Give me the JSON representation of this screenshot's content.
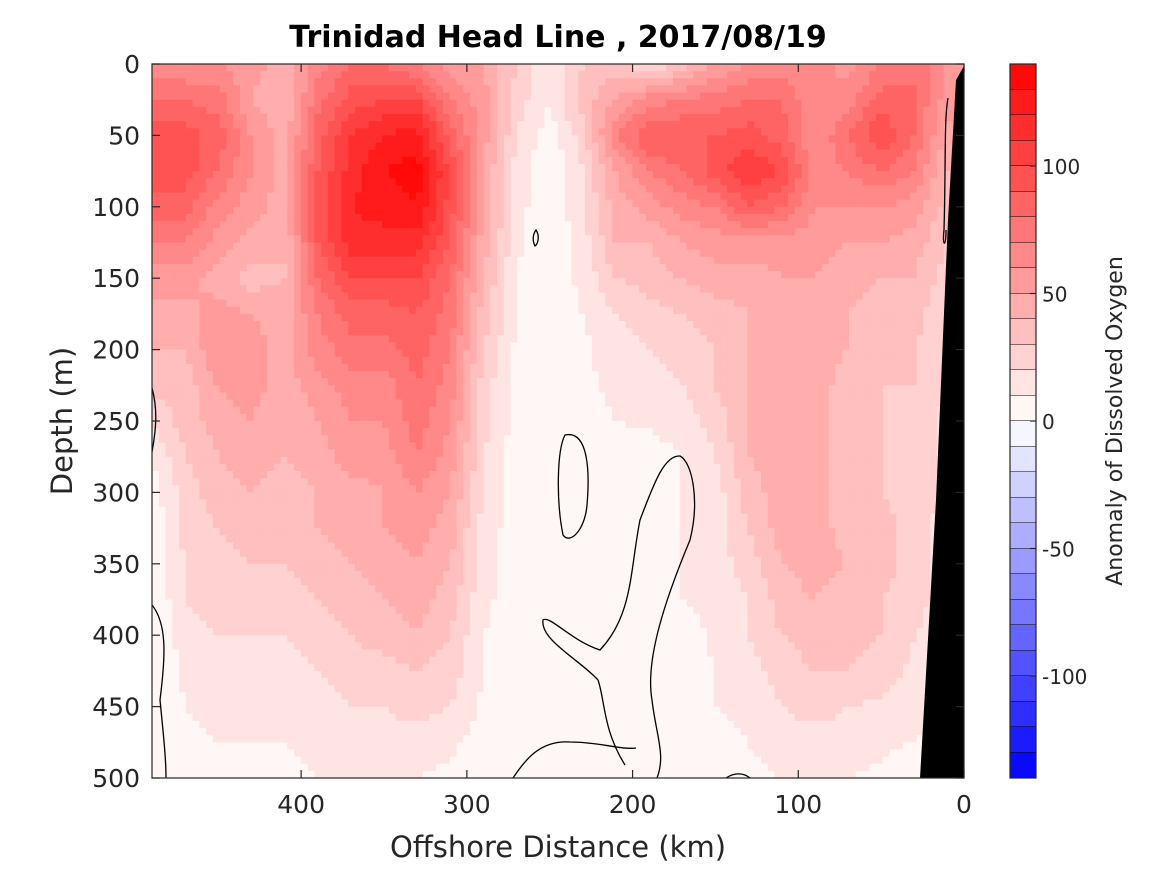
{
  "chart_data": {
    "type": "heatmap",
    "title": "Trinidad Head Line , 2017/08/19",
    "xlabel": "Offshore Distance (km)",
    "ylabel": "Depth (m)",
    "xlim": [
      490,
      0
    ],
    "ylim": [
      0,
      500
    ],
    "x_ticks": [
      400,
      300,
      200,
      100,
      0
    ],
    "y_ticks": [
      0,
      50,
      100,
      150,
      200,
      250,
      300,
      350,
      400,
      450,
      500
    ],
    "y_reversed": true,
    "x_reversed": true,
    "colorbar": {
      "label": "Anomaly of Dissolved Oxygen",
      "range": [
        -140,
        140
      ],
      "ticks": [
        -100,
        -50,
        0,
        50,
        100
      ],
      "levels_step": 10,
      "colormap": "blue-white-red",
      "max_color": "#ff0000",
      "min_color": "#0000ff",
      "zero_color": "#ffffff"
    },
    "bathymetry_color": "#000000",
    "contour_line_value": 0,
    "stations_x": [
      490,
      470,
      450,
      430,
      410,
      390,
      370,
      350,
      330,
      310,
      290,
      270,
      250,
      230,
      210,
      190,
      170,
      150,
      130,
      110,
      90,
      70,
      50,
      30,
      10
    ],
    "depths": [
      0,
      25,
      50,
      75,
      100,
      125,
      150,
      175,
      200,
      225,
      250,
      275,
      300,
      325,
      350,
      375,
      400,
      425,
      450,
      475,
      500
    ],
    "anomaly_grid": [
      [
        60,
        60,
        60,
        55,
        45,
        65,
        80,
        80,
        70,
        55,
        50,
        30,
        10,
        30,
        35,
        15,
        35,
        50,
        60,
        65,
        65,
        55,
        70,
        80,
        60
      ],
      [
        80,
        80,
        75,
        50,
        40,
        75,
        95,
        100,
        100,
        70,
        55,
        25,
        10,
        35,
        50,
        65,
        70,
        75,
        80,
        80,
        60,
        65,
        85,
        80,
        55
      ],
      [
        95,
        95,
        85,
        60,
        45,
        85,
        110,
        120,
        125,
        85,
        55,
        20,
        5,
        25,
        70,
        90,
        90,
        90,
        95,
        85,
        60,
        80,
        100,
        80,
        45
      ],
      [
        95,
        95,
        80,
        60,
        45,
        90,
        115,
        130,
        135,
        100,
        50,
        15,
        0,
        20,
        50,
        70,
        80,
        95,
        110,
        100,
        65,
        70,
        80,
        70,
        40
      ],
      [
        85,
        85,
        65,
        55,
        45,
        95,
        120,
        125,
        130,
        95,
        50,
        15,
        0,
        20,
        45,
        55,
        65,
        70,
        90,
        80,
        60,
        60,
        60,
        55,
        35
      ],
      [
        70,
        70,
        55,
        45,
        40,
        90,
        115,
        115,
        115,
        90,
        45,
        12,
        0,
        15,
        40,
        40,
        50,
        55,
        55,
        55,
        55,
        50,
        50,
        45,
        30
      ],
      [
        55,
        55,
        45,
        35,
        40,
        80,
        100,
        100,
        100,
        80,
        40,
        10,
        5,
        12,
        30,
        35,
        40,
        45,
        45,
        50,
        50,
        45,
        40,
        40,
        25
      ],
      [
        45,
        45,
        55,
        50,
        45,
        70,
        85,
        85,
        90,
        75,
        35,
        10,
        5,
        10,
        20,
        25,
        30,
        35,
        40,
        45,
        45,
        40,
        35,
        35,
        20
      ],
      [
        40,
        40,
        60,
        55,
        45,
        65,
        75,
        75,
        85,
        70,
        30,
        8,
        5,
        8,
        15,
        20,
        25,
        30,
        40,
        45,
        45,
        40,
        35,
        30,
        18
      ],
      [
        35,
        35,
        50,
        55,
        45,
        55,
        65,
        65,
        80,
        65,
        25,
        5,
        5,
        8,
        12,
        15,
        20,
        30,
        40,
        45,
        45,
        35,
        30,
        30,
        18
      ],
      [
        20,
        35,
        45,
        50,
        40,
        50,
        60,
        60,
        75,
        60,
        25,
        5,
        0,
        5,
        10,
        12,
        15,
        25,
        40,
        45,
        45,
        35,
        30,
        25,
        18
      ],
      [
        10,
        30,
        40,
        45,
        40,
        45,
        55,
        55,
        70,
        55,
        20,
        5,
        0,
        5,
        5,
        5,
        10,
        20,
        40,
        45,
        45,
        35,
        30,
        25,
        18
      ],
      [
        5,
        25,
        35,
        40,
        35,
        40,
        45,
        50,
        60,
        50,
        20,
        5,
        0,
        5,
        5,
        0,
        10,
        15,
        35,
        45,
        45,
        35,
        30,
        25,
        18
      ],
      [
        0,
        25,
        30,
        35,
        35,
        40,
        45,
        50,
        55,
        45,
        15,
        5,
        0,
        5,
        5,
        0,
        10,
        15,
        30,
        45,
        45,
        35,
        35,
        25,
        15
      ],
      [
        0,
        20,
        25,
        30,
        30,
        35,
        40,
        45,
        50,
        40,
        15,
        5,
        0,
        5,
        5,
        0,
        10,
        15,
        25,
        40,
        45,
        40,
        35,
        25,
        15
      ],
      [
        0,
        20,
        25,
        25,
        25,
        30,
        35,
        40,
        45,
        35,
        12,
        5,
        0,
        0,
        0,
        0,
        10,
        12,
        20,
        35,
        40,
        35,
        30,
        25,
        15
      ],
      [
        0,
        15,
        20,
        20,
        20,
        25,
        30,
        35,
        40,
        30,
        10,
        5,
        0,
        0,
        0,
        0,
        5,
        12,
        20,
        30,
        35,
        35,
        30,
        20,
        12
      ],
      [
        0,
        12,
        15,
        15,
        15,
        20,
        25,
        25,
        30,
        25,
        10,
        5,
        0,
        0,
        0,
        0,
        5,
        10,
        15,
        25,
        30,
        30,
        25,
        18,
        10
      ],
      [
        0,
        10,
        12,
        12,
        12,
        15,
        20,
        20,
        25,
        20,
        8,
        5,
        0,
        0,
        0,
        0,
        5,
        10,
        12,
        20,
        25,
        20,
        18,
        15,
        8
      ],
      [
        0,
        8,
        10,
        10,
        10,
        12,
        15,
        15,
        15,
        12,
        5,
        0,
        0,
        0,
        0,
        0,
        5,
        8,
        10,
        15,
        15,
        15,
        12,
        10,
        5
      ],
      [
        0,
        5,
        8,
        8,
        8,
        10,
        12,
        10,
        10,
        8,
        5,
        0,
        0,
        0,
        0,
        0,
        5,
        5,
        8,
        10,
        10,
        10,
        8,
        5,
        5
      ]
    ]
  }
}
